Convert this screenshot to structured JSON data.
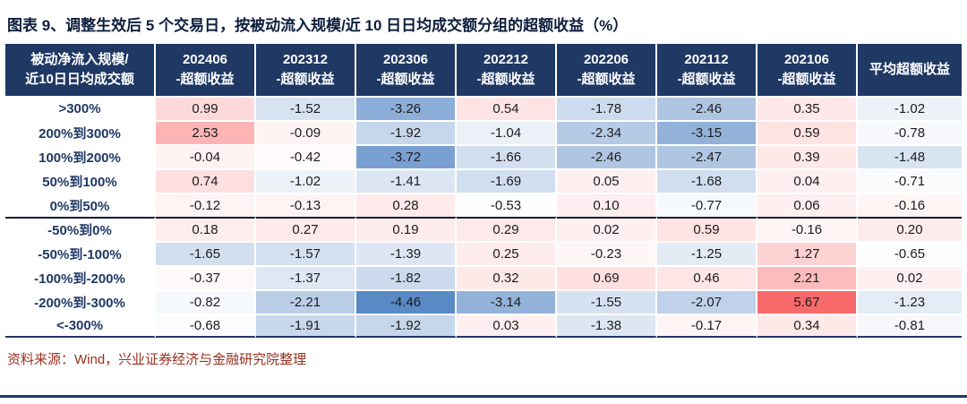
{
  "title": "图表 9、调整生效后 5 个交易日，按被动流入规模/近 10 日日均成交额分组的超额收益（%）",
  "source": "资料来源：Wind，兴业证券经济与金融研究院整理",
  "colors": {
    "header_bg": "#1F3864",
    "header_text": "#FFFFFF",
    "title_text": "#0D1E3C",
    "row_label_text": "#1F3864",
    "source_text": "#99301F",
    "group_divider": "#141E33",
    "scale_red": "#F8696B",
    "scale_white": "#FFFFFF",
    "scale_blue": "#5A8AC6"
  },
  "chart_data": {
    "type": "table",
    "title": "调整生效后 5 个交易日，按被动流入规模/近 10 日日均成交额分组的超额收益（%）",
    "row_header_lines": [
      "被动净流入规模/",
      "近10日日均成交额"
    ],
    "columns": [
      {
        "lines": [
          "202406",
          "-超额收益"
        ]
      },
      {
        "lines": [
          "202312",
          "-超额收益"
        ]
      },
      {
        "lines": [
          "202306",
          "-超额收益"
        ]
      },
      {
        "lines": [
          "202212",
          "-超额收益"
        ]
      },
      {
        "lines": [
          "202206",
          "-超额收益"
        ]
      },
      {
        "lines": [
          "202112",
          "-超额收益"
        ]
      },
      {
        "lines": [
          "202106",
          "-超额收益"
        ]
      },
      {
        "lines": [
          "平均超额收益"
        ]
      }
    ],
    "rows": [
      {
        "label": ">300%",
        "values": [
          0.99,
          -1.52,
          -3.26,
          0.54,
          -1.78,
          -2.46,
          0.35,
          -1.02
        ]
      },
      {
        "label": "200%到300%",
        "values": [
          2.53,
          -0.09,
          -1.92,
          -1.04,
          -2.34,
          -3.15,
          0.59,
          -0.78
        ]
      },
      {
        "label": "100%到200%",
        "values": [
          -0.04,
          -0.42,
          -3.72,
          -1.66,
          -2.46,
          -2.47,
          0.39,
          -1.48
        ]
      },
      {
        "label": "50%到100%",
        "values": [
          0.74,
          -1.02,
          -1.41,
          -1.69,
          0.05,
          -1.68,
          0.04,
          -0.71
        ]
      },
      {
        "label": "0%到50%",
        "values": [
          -0.12,
          -0.13,
          0.28,
          -0.53,
          0.1,
          -0.77,
          0.06,
          -0.16
        ]
      },
      {
        "label": "-50%到0%",
        "values": [
          0.18,
          0.27,
          0.19,
          0.29,
          0.02,
          0.59,
          -0.16,
          0.2
        ]
      },
      {
        "label": "-50%到-100%",
        "values": [
          -1.65,
          -1.57,
          -1.39,
          0.25,
          -0.23,
          -1.25,
          1.27,
          -0.65
        ]
      },
      {
        "label": "-100%到-200%",
        "values": [
          -0.37,
          -1.37,
          -1.82,
          0.32,
          0.69,
          0.46,
          2.21,
          0.02
        ]
      },
      {
        "label": "-200%到-300%",
        "values": [
          -0.82,
          -2.21,
          -4.46,
          -3.14,
          -1.55,
          -2.07,
          5.67,
          -1.23
        ]
      },
      {
        "label": "<-300%",
        "values": [
          -0.68,
          -1.91,
          -1.92,
          0.03,
          -1.38,
          -0.17,
          0.34,
          -0.81
        ]
      }
    ],
    "group_separator_before_row": 5,
    "color_scale": {
      "min": -4.46,
      "mid": -0.59,
      "max": 5.67
    },
    "legend_position": "none",
    "grid": "white-cell-borders"
  }
}
